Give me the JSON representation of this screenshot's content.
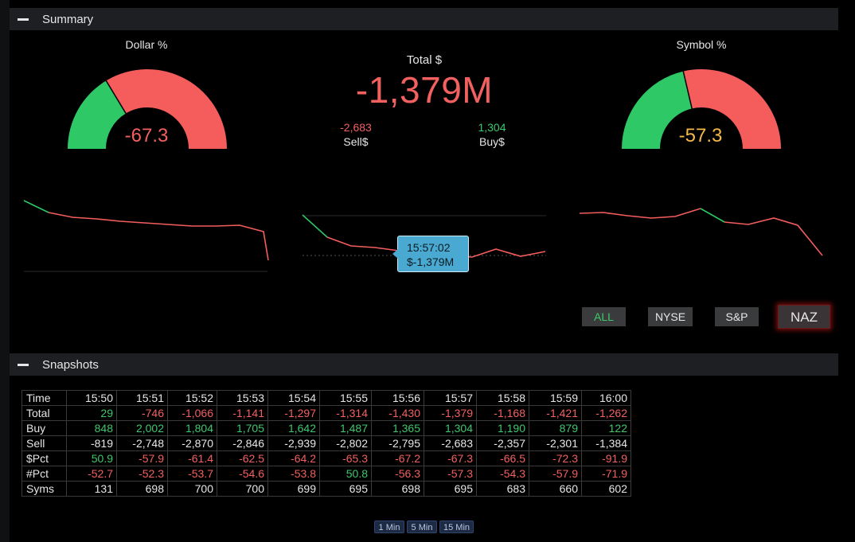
{
  "summary": {
    "header": "Summary",
    "dollar_gauge": {
      "title": "Dollar %",
      "value": "-67.3",
      "pct": -67.3,
      "value_color": "#f26060"
    },
    "symbol_gauge": {
      "title": "Symbol %",
      "value": "-57.3",
      "pct": -57.3,
      "value_color": "#f5b948"
    },
    "total": {
      "label": "Total $",
      "value": "-1,379M",
      "sell_value": "-2,683",
      "sell_label": "Sell$",
      "buy_value": "1,304",
      "buy_label": "Buy$"
    },
    "tooltip": {
      "time": "15:57:02",
      "value": "$-1,379M"
    },
    "market_buttons": [
      "ALL",
      "NYSE",
      "S&P",
      "NAZ"
    ],
    "selected_market": "NAZ"
  },
  "snapshots": {
    "header": "Snapshots",
    "table": {
      "header_label": "Time",
      "times": [
        "15:50",
        "15:51",
        "15:52",
        "15:53",
        "15:54",
        "15:55",
        "15:56",
        "15:57",
        "15:58",
        "15:59",
        "16:00"
      ],
      "rows": [
        {
          "label": "Total",
          "values": [
            "29",
            "-746",
            "-1,066",
            "-1,141",
            "-1,297",
            "-1,314",
            "-1,430",
            "-1,379",
            "-1,168",
            "-1,421",
            "-1,262"
          ]
        },
        {
          "label": "Buy",
          "values": [
            "848",
            "2,002",
            "1,804",
            "1,705",
            "1,642",
            "1,487",
            "1,365",
            "1,304",
            "1,190",
            "879",
            "122"
          ]
        },
        {
          "label": "Sell",
          "values": [
            "-819",
            "-2,748",
            "-2,870",
            "-2,846",
            "-2,939",
            "-2,802",
            "-2,795",
            "-2,683",
            "-2,357",
            "-2,301",
            "-1,384"
          ]
        },
        {
          "label": "$Pct",
          "values": [
            "50.9",
            "-57.9",
            "-61.4",
            "-62.5",
            "-64.2",
            "-65.3",
            "-67.2",
            "-67.3",
            "-66.5",
            "-72.3",
            "-91.9"
          ]
        },
        {
          "label": "#Pct",
          "values": [
            "-52.7",
            "-52.3",
            "-53.7",
            "-54.6",
            "-53.8",
            "50.8",
            "-56.3",
            "-57.3",
            "-54.3",
            "-57.9",
            "-71.9"
          ]
        },
        {
          "label": "Syms",
          "values": [
            "131",
            "698",
            "700",
            "700",
            "699",
            "695",
            "698",
            "695",
            "683",
            "660",
            "602"
          ]
        }
      ]
    },
    "interval_buttons": [
      "1 Min",
      "5 Min",
      "15 Min"
    ]
  },
  "colors": {
    "positive": "#3fc76b",
    "negative": "#f26060",
    "gauge_green": "#2ec866",
    "gauge_red": "#f55d5d",
    "accent": "#4aa9d0"
  }
}
